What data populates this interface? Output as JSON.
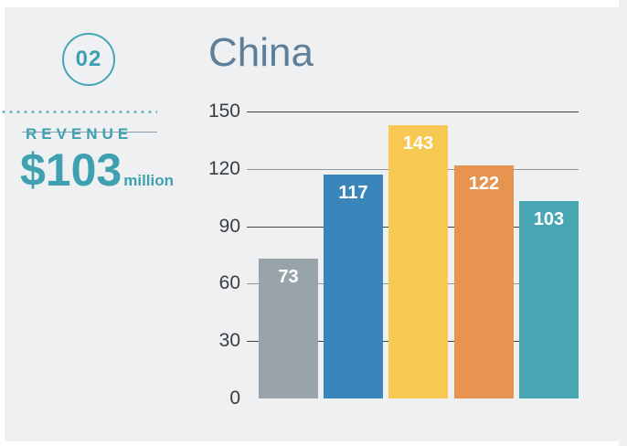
{
  "slide": {
    "number": "02"
  },
  "revenue": {
    "label": "REVENUE",
    "amount": "$103",
    "unit": "million"
  },
  "chart_data": {
    "type": "bar",
    "title": "China",
    "values": [
      73,
      117,
      143,
      122,
      103
    ],
    "bar_colors": [
      "#99a3aa",
      "#3a86bb",
      "#f8c952",
      "#e79450",
      "#48a6b2"
    ],
    "yticks": [
      150,
      120,
      90,
      60,
      30,
      0
    ],
    "gridline_ticks": [
      150,
      120,
      90,
      60,
      30
    ],
    "ylim": [
      0,
      150
    ],
    "grid": true,
    "legend": false,
    "xlabel": "",
    "ylabel": "",
    "value_label_position": "inside-top"
  },
  "colors": {
    "accent": "#43a4b4",
    "title_text": "#5e7f9a",
    "panel_bg": "#eef0f2",
    "page_bg": "#ffffff",
    "axis_label": "#3b3e41",
    "gridline_dark": "#3f4244",
    "gridline_light": "#939698",
    "bar_value_text": "#ffffff"
  }
}
